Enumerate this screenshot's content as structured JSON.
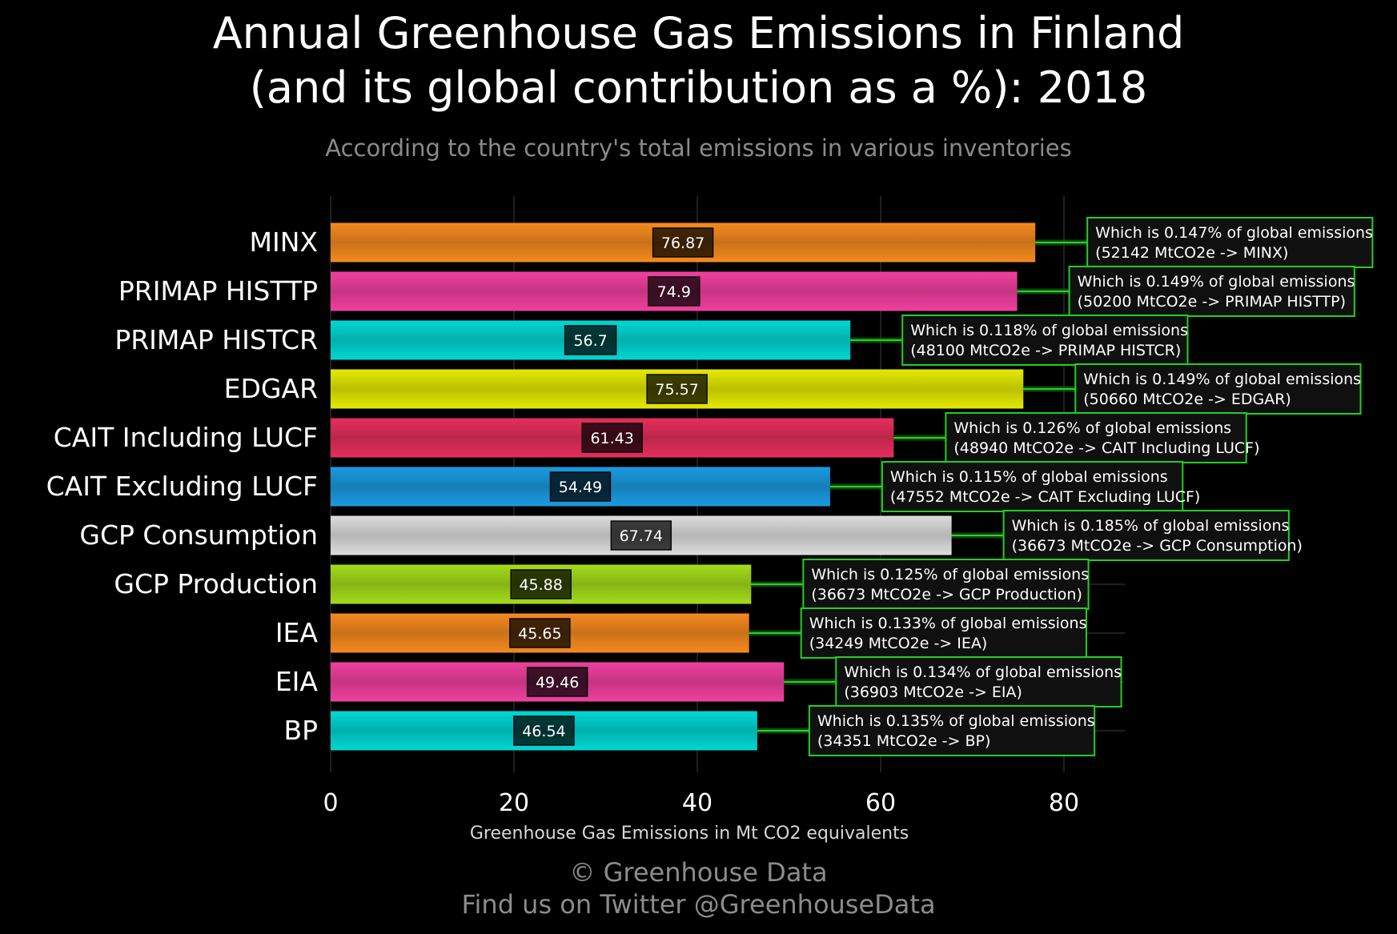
{
  "title_line1": "Annual Greenhouse Gas Emissions in Finland",
  "title_line2": "(and its global contribution as a %): 2018",
  "subtitle": "According to the country's total emissions in various inventories",
  "footer_line1": "© Greenhouse Data",
  "footer_line2": "Find us on Twitter @GreenhouseData",
  "chart_data": {
    "type": "bar",
    "orientation": "horizontal",
    "title": "Annual Greenhouse Gas Emissions in Finland (and its global contribution as a %): 2018",
    "subtitle": "According to the country's total emissions in various inventories",
    "xlabel": "Greenhouse Gas Emissions in Mt CO2 equivalents",
    "ylabel": "",
    "xlim": [
      0,
      86
    ],
    "xticks": [
      0,
      20,
      40,
      60,
      80
    ],
    "grid": "vertical",
    "categories": [
      "MINX",
      "PRIMAP HISTTP",
      "PRIMAP HISTCR",
      "EDGAR",
      "CAIT Including LUCF",
      "CAIT Excluding LUCF",
      "GCP Consumption",
      "GCP Production",
      "IEA",
      "EIA",
      "BP"
    ],
    "values": [
      76.87,
      74.9,
      56.7,
      75.57,
      61.43,
      54.49,
      67.74,
      45.88,
      45.65,
      49.46,
      46.54
    ],
    "value_labels": [
      "76.87",
      "74.9",
      "56.7",
      "75.57",
      "61.43",
      "54.49",
      "67.74",
      "45.88",
      "45.65",
      "49.46",
      "46.54"
    ],
    "colors": [
      "#f58a1f",
      "#f0409f",
      "#00d7d3",
      "#e4ea00",
      "#e52e5c",
      "#1a9be0",
      "#dddddd",
      "#a4dc1b",
      "#f58a1f",
      "#f0409f",
      "#00d7d3"
    ],
    "annotations": [
      {
        "line1": "Which is 0.147% of global emissions",
        "line2": "(52142 MtCO2e -> MINX)"
      },
      {
        "line1": "Which is 0.149% of global emissions",
        "line2": "(50200 MtCO2e -> PRIMAP HISTTP)"
      },
      {
        "line1": "Which is 0.118% of global emissions",
        "line2": "(48100 MtCO2e -> PRIMAP HISTCR)"
      },
      {
        "line1": "Which is 0.149% of global emissions",
        "line2": "(50660 MtCO2e -> EDGAR)"
      },
      {
        "line1": "Which is 0.126% of global emissions",
        "line2": "(48940 MtCO2e -> CAIT Including LUCF)"
      },
      {
        "line1": "Which is 0.115% of global emissions",
        "line2": "(47552 MtCO2e -> CAIT Excluding LUCF)"
      },
      {
        "line1": "Which is 0.185% of global emissions",
        "line2": "(36673 MtCO2e -> GCP Consumption)"
      },
      {
        "line1": "Which is 0.125% of global emissions",
        "line2": "(36673 MtCO2e -> GCP Production)"
      },
      {
        "line1": "Which is 0.133% of global emissions",
        "line2": "(34249 MtCO2e -> IEA)"
      },
      {
        "line1": "Which is 0.134% of global emissions",
        "line2": "(36903 MtCO2e -> EIA)"
      },
      {
        "line1": "Which is 0.135% of global emissions",
        "line2": "(34351 MtCO2e -> BP)"
      }
    ],
    "annotation_border_color": "#1fd11f"
  }
}
